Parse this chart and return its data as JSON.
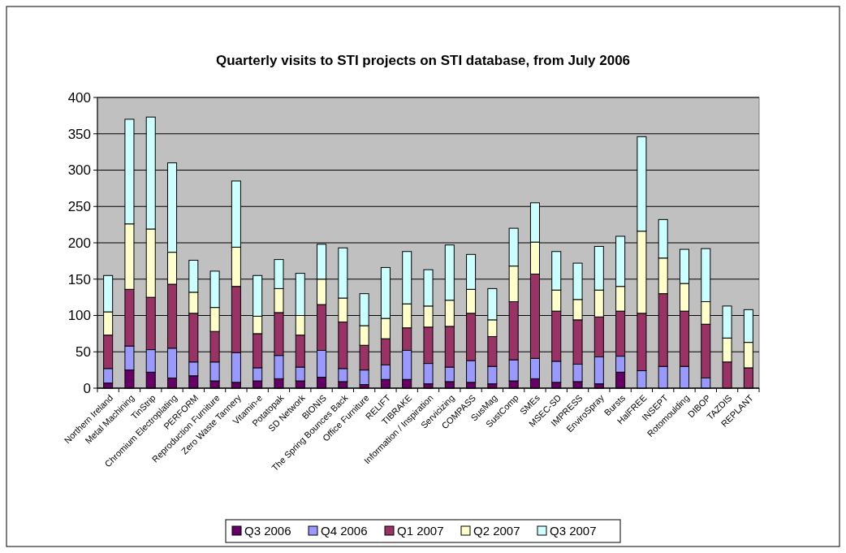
{
  "chart_data": {
    "type": "bar",
    "stacked": true,
    "title": "Quarterly visits to STI projects on STI database, from July 2006",
    "categories": [
      "Northern Ireland",
      "Metal Machining",
      "TinStrip",
      "Chromium Electroplating",
      "PERFORM",
      "Reproduction Furniture",
      "Zero Waste Tannery",
      "Vitamin-e",
      "Potatopak",
      "SD Network",
      "BIONIS",
      "The Spring Bounces Back",
      "Office Furniture",
      "RELIFT",
      "TIBRAKE",
      "Information / Inspiration",
      "Servicizing",
      "COMPASS",
      "SusMag",
      "SustComp",
      "SMEs",
      "MSEC-SD",
      "IMPRESS",
      "EnviroSpray",
      "Bursts",
      "HalFREE",
      "INSEPT",
      "Rotomoulding",
      "DIBOP",
      "TAZDIS",
      "REPLANT"
    ],
    "series": [
      {
        "name": "Q3 2006",
        "color": "#660066",
        "values": [
          7,
          25,
          22,
          14,
          17,
          10,
          8,
          10,
          13,
          10,
          15,
          9,
          5,
          12,
          12,
          6,
          9,
          8,
          6,
          10,
          13,
          8,
          9,
          6,
          22,
          0,
          0,
          0,
          0,
          0,
          0
        ]
      },
      {
        "name": "Q4 2006",
        "color": "#9999ff",
        "values": [
          20,
          33,
          31,
          41,
          19,
          26,
          41,
          18,
          32,
          19,
          37,
          18,
          20,
          20,
          40,
          28,
          20,
          30,
          24,
          29,
          28,
          29,
          24,
          37,
          22,
          24,
          30,
          30,
          14,
          0,
          0
        ]
      },
      {
        "name": "Q1 2007",
        "color": "#993366",
        "values": [
          46,
          78,
          72,
          88,
          67,
          42,
          91,
          47,
          59,
          44,
          63,
          64,
          34,
          36,
          31,
          50,
          56,
          65,
          41,
          80,
          116,
          69,
          61,
          55,
          62,
          79,
          100,
          76,
          74,
          36,
          28
        ]
      },
      {
        "name": "Q2 2007",
        "color": "#ffffcc",
        "values": [
          32,
          90,
          94,
          44,
          29,
          33,
          54,
          24,
          33,
          27,
          35,
          33,
          27,
          28,
          33,
          29,
          36,
          33,
          23,
          49,
          44,
          29,
          28,
          37,
          34,
          113,
          49,
          38,
          31,
          33,
          35
        ]
      },
      {
        "name": "Q3 2007",
        "color": "#ccffff",
        "values": [
          50,
          144,
          154,
          123,
          44,
          50,
          91,
          56,
          40,
          58,
          48,
          69,
          44,
          70,
          72,
          50,
          76,
          48,
          43,
          52,
          54,
          53,
          50,
          60,
          69,
          130,
          53,
          47,
          73,
          44,
          45
        ]
      }
    ],
    "ylim": [
      0,
      400
    ],
    "yticks": [
      0,
      50,
      100,
      150,
      200,
      250,
      300,
      350,
      400
    ],
    "grid": "y",
    "legend": "bottom"
  }
}
